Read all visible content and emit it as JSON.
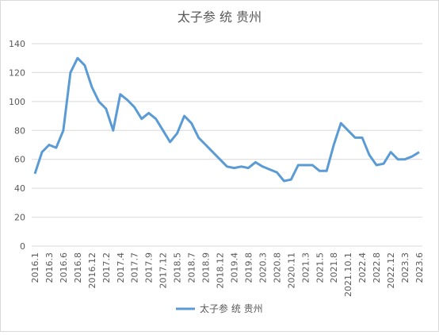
{
  "chart_data": {
    "type": "line",
    "title": "太子参 统 贵州",
    "categories": [
      "2016.1",
      null,
      "2016.3",
      null,
      "2016.6",
      null,
      "2016.8",
      null,
      "2016.12",
      null,
      "2017.2",
      null,
      "2017.4",
      null,
      "2017.7",
      null,
      "2017.9",
      null,
      "2017.12",
      null,
      "2018.5",
      null,
      "2018.7",
      null,
      "2018.9",
      null,
      "2018.12",
      null,
      "2019.4",
      null,
      "2019.8",
      null,
      "2020.3",
      null,
      "2020.8",
      null,
      "2020.11",
      null,
      "2021.3",
      null,
      "2021.5",
      null,
      "2021.8",
      null,
      "2021.10.1",
      null,
      "2022.4",
      null,
      "2022.8",
      null,
      "2022.12",
      null,
      "2023.3",
      null,
      "2023.6"
    ],
    "series": [
      {
        "name": "太子参 统 贵州",
        "color": "#5b9bd5",
        "values": [
          50,
          65,
          70,
          68,
          80,
          120,
          130,
          125,
          110,
          100,
          95,
          80,
          105,
          101,
          96,
          88,
          92,
          88,
          80,
          72,
          78,
          90,
          85,
          75,
          70,
          65,
          60,
          55,
          54,
          55,
          54,
          58,
          55,
          53,
          51,
          45,
          46,
          56,
          56,
          56,
          52,
          52,
          70,
          85,
          80,
          75,
          75,
          63,
          56,
          57,
          65,
          60,
          60,
          62,
          65
        ]
      }
    ],
    "ylim": [
      0,
      140
    ],
    "yticks": [
      0,
      20,
      40,
      60,
      80,
      100,
      120,
      140
    ],
    "grid": true,
    "legend": "bottom"
  }
}
